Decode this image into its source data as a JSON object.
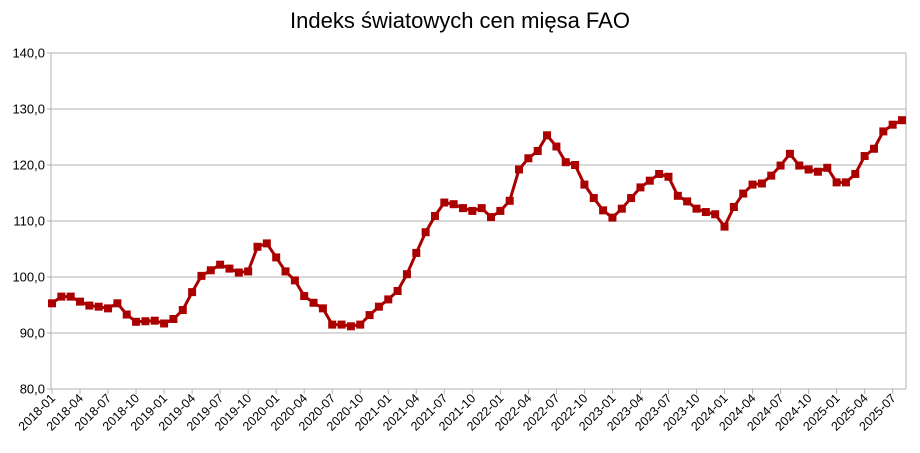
{
  "chart_data": {
    "type": "line",
    "title": "Indeks światowych cen mięsa FAO",
    "xlabel": "",
    "ylabel": "",
    "ylim": [
      80,
      140
    ],
    "yticks": [
      "80,0",
      "90,0",
      "100,0",
      "110,0",
      "120,0",
      "130,0",
      "140,0"
    ],
    "grid": "horizontal",
    "legend": "none",
    "series_color": "#aa0000",
    "x_tick_labels": [
      "2018-01",
      "2018-04",
      "2018-07",
      "2018-10",
      "2019-01",
      "2019-04",
      "2019-07",
      "2019-10",
      "2020-01",
      "2020-04",
      "2020-07",
      "2020-10",
      "2021-01",
      "2021-04",
      "2021-07",
      "2021-10",
      "2022-01",
      "2022-04",
      "2022-07",
      "2022-10",
      "2023-01",
      "2023-04",
      "2023-07",
      "2023-10",
      "2024-01",
      "2024-04",
      "2024-07",
      "2024-10",
      "2025-01",
      "2025-04",
      "2025-07"
    ],
    "x": [
      "2018-01",
      "2018-02",
      "2018-03",
      "2018-04",
      "2018-05",
      "2018-06",
      "2018-07",
      "2018-08",
      "2018-09",
      "2018-10",
      "2018-11",
      "2018-12",
      "2019-01",
      "2019-02",
      "2019-03",
      "2019-04",
      "2019-05",
      "2019-06",
      "2019-07",
      "2019-08",
      "2019-09",
      "2019-10",
      "2019-11",
      "2019-12",
      "2020-01",
      "2020-02",
      "2020-03",
      "2020-04",
      "2020-05",
      "2020-06",
      "2020-07",
      "2020-08",
      "2020-09",
      "2020-10",
      "2020-11",
      "2020-12",
      "2021-01",
      "2021-02",
      "2021-03",
      "2021-04",
      "2021-05",
      "2021-06",
      "2021-07",
      "2021-08",
      "2021-09",
      "2021-10",
      "2021-11",
      "2021-12",
      "2022-01",
      "2022-02",
      "2022-03",
      "2022-04",
      "2022-05",
      "2022-06",
      "2022-07",
      "2022-08",
      "2022-09",
      "2022-10",
      "2022-11",
      "2022-12",
      "2023-01",
      "2023-02",
      "2023-03",
      "2023-04",
      "2023-05",
      "2023-06",
      "2023-07",
      "2023-08",
      "2023-09",
      "2023-10",
      "2023-11",
      "2023-12",
      "2024-01",
      "2024-02",
      "2024-03",
      "2024-04",
      "2024-05",
      "2024-06",
      "2024-07",
      "2024-08",
      "2024-09",
      "2024-10",
      "2024-11",
      "2024-12",
      "2025-01",
      "2025-02",
      "2025-03",
      "2025-04",
      "2025-05",
      "2025-06",
      "2025-07",
      "2025-08"
    ],
    "values": [
      95.3,
      96.5,
      96.5,
      95.6,
      94.9,
      94.7,
      94.4,
      95.3,
      93.3,
      92.0,
      92.1,
      92.2,
      91.7,
      92.5,
      94.1,
      97.3,
      100.2,
      101.2,
      102.2,
      101.5,
      100.8,
      101.0,
      105.4,
      106.0,
      103.5,
      101.0,
      99.4,
      96.6,
      95.4,
      94.4,
      91.5,
      91.5,
      91.2,
      91.5,
      93.2,
      94.7,
      96.0,
      97.5,
      100.5,
      104.3,
      108.0,
      110.9,
      113.3,
      113.0,
      112.3,
      111.8,
      112.3,
      110.7,
      111.8,
      113.6,
      119.2,
      121.2,
      122.5,
      125.3,
      123.3,
      120.5,
      120.0,
      116.5,
      114.1,
      111.9,
      110.6,
      112.2,
      114.1,
      116.0,
      117.2,
      118.4,
      117.9,
      114.5,
      113.5,
      112.2,
      111.6,
      111.2,
      109.0,
      112.5,
      114.9,
      116.5,
      116.7,
      118.1,
      119.9,
      122.0,
      119.9,
      119.2,
      118.8,
      119.5,
      116.9,
      116.9,
      118.4,
      121.6,
      122.9,
      126.0,
      127.2,
      128.0
    ]
  }
}
